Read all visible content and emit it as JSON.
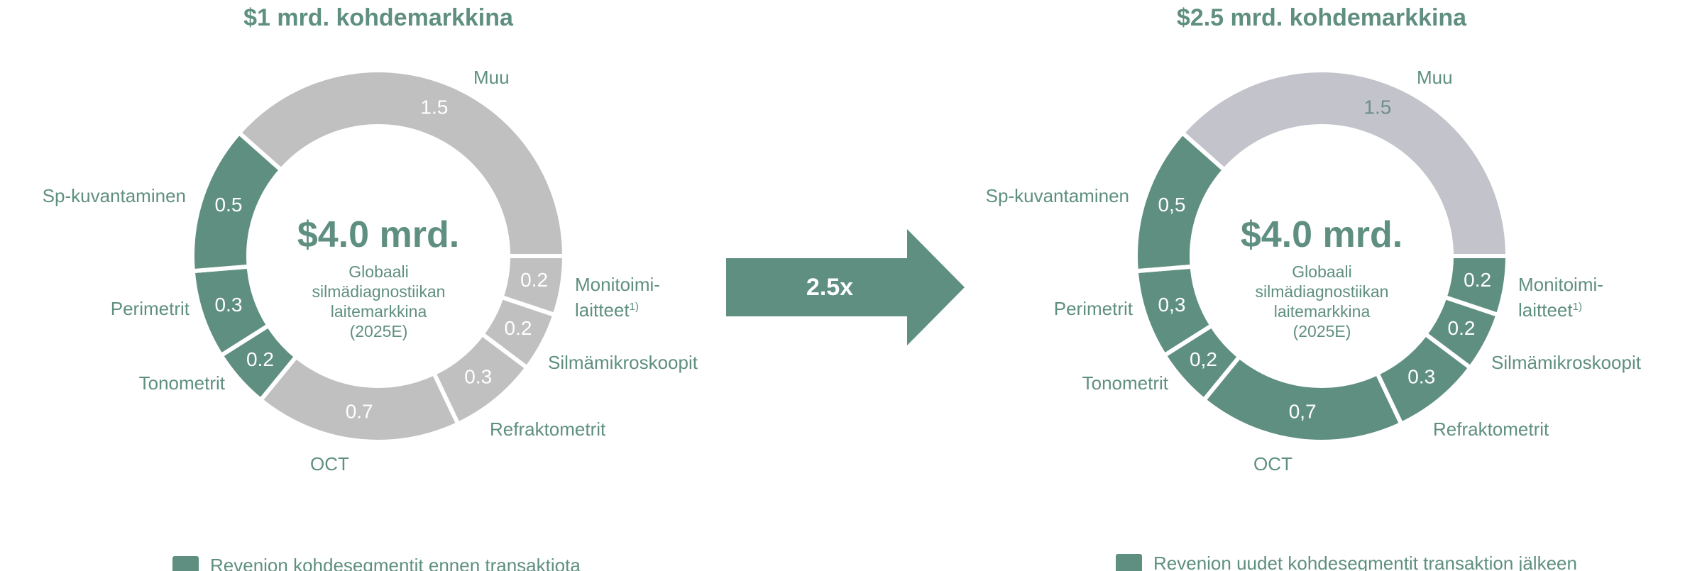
{
  "chart_data": [
    {
      "type": "donut",
      "title": "$1 mrd. kohdemarkkina",
      "center_title": "$4.0 mrd.",
      "center_subtitle": "Globaali silmädiagnostiikan laitemarkkina (2025E)",
      "categories": [
        "Muu",
        "Monitoimi-laitteet",
        "Silmämikroskoopit",
        "Refraktometrit",
        "OCT",
        "Tonometrit",
        "Perimetrit",
        "Sp-kuvantaminen"
      ],
      "footnotes": [
        null,
        "1)",
        null,
        null,
        null,
        null,
        null,
        null
      ],
      "values": [
        1.5,
        0.2,
        0.2,
        0.3,
        0.7,
        0.2,
        0.3,
        0.5
      ],
      "colors": [
        "#c0c0c0",
        "#c0c0c0",
        "#c0c0c0",
        "#c0c0c0",
        "#c0c0c0",
        "#5f8f80",
        "#5f8f80",
        "#5f8f80"
      ],
      "value_label_colors": [
        "#ffffff",
        "#ffffff",
        "#ffffff",
        "#ffffff",
        "#ffffff",
        "#ffffff",
        "#ffffff",
        "#ffffff"
      ],
      "legend": {
        "label": "Revenion kohdesegmentit ennen transaktiota",
        "color": "#5f8f80"
      }
    },
    {
      "type": "donut",
      "title": "$2.5 mrd. kohdemarkkina",
      "center_title": "$4.0 mrd.",
      "center_subtitle": "Globaali silmädiagnostiikan laitemarkkina (2025E)",
      "categories": [
        "Muu",
        "Monitoimi-laitteet",
        "Silmämikroskoopit",
        "Refraktometrit",
        "OCT",
        "Tonometrit",
        "Perimetrit",
        "Sp-kuvantaminen"
      ],
      "footnotes": [
        null,
        "1)",
        null,
        null,
        null,
        null,
        null,
        null
      ],
      "values": [
        1.5,
        0.2,
        0.2,
        0.3,
        0.7,
        0.2,
        0.3,
        0.5
      ],
      "value_labels": [
        "1.5",
        "0.2",
        "0.2",
        "0.3",
        "0,7",
        "0,2",
        "0,3",
        "0,5"
      ],
      "colors": [
        "#c3c3cc",
        "#5f8f80",
        "#5f8f80",
        "#5f8f80",
        "#5f8f80",
        "#5f8f80",
        "#5f8f80",
        "#5f8f80"
      ],
      "value_label_colors": [
        "#6f8f86",
        "#ffffff",
        "#ffffff",
        "#ffffff",
        "#ffffff",
        "#ffffff",
        "#ffffff",
        "#ffffff"
      ],
      "legend": {
        "label": "Revenion uudet kohdesegmentit transaktion jälkeen",
        "color": "#5f8f80"
      }
    }
  ],
  "arrow": {
    "label": "2.5x",
    "color": "#5f8f80"
  }
}
